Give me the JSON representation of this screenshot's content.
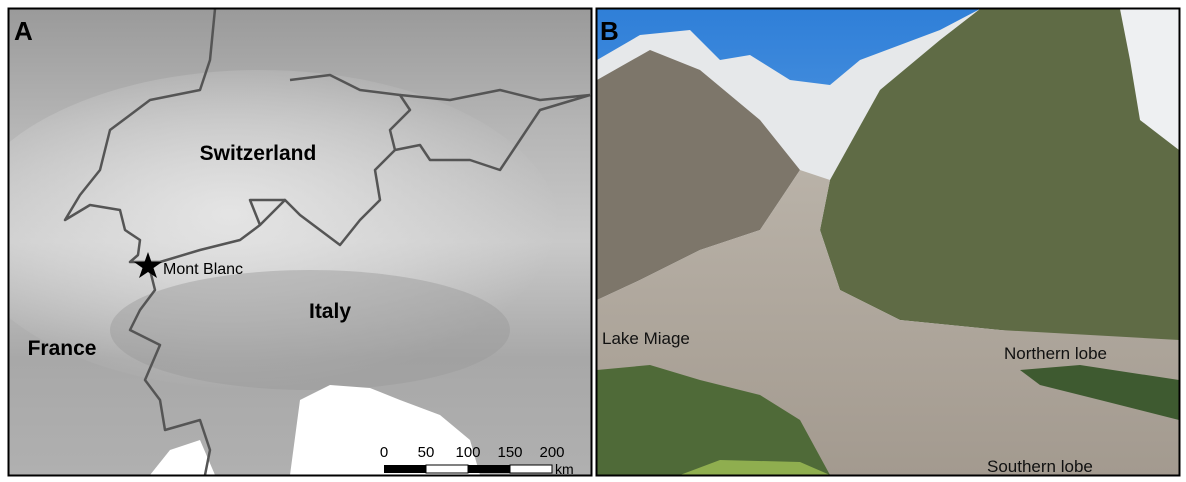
{
  "panels": [
    {
      "label": "A",
      "places": [
        "Switzerland",
        "Italy",
        "France"
      ],
      "marker": "Mont Blanc",
      "scale_bar": {
        "ticks": [
          "0",
          "50",
          "100",
          "150",
          "200"
        ],
        "unit": "km"
      }
    },
    {
      "label": "B",
      "annotations": [
        "Lake Miage",
        "Northern lobe",
        "Southern lobe"
      ]
    }
  ]
}
